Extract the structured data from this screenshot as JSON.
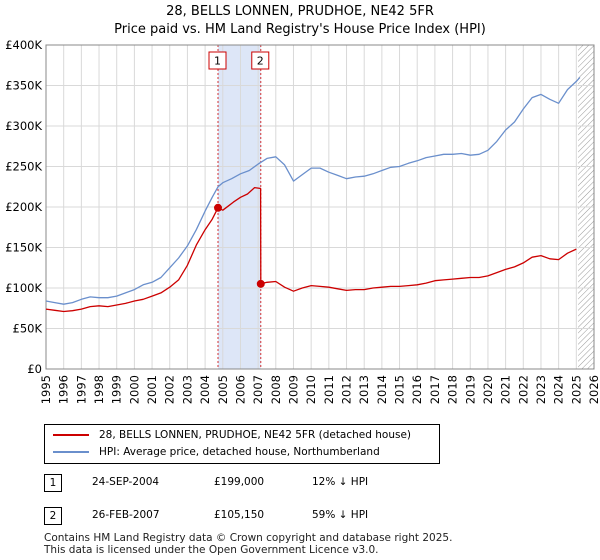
{
  "title": "28, BELLS LONNEN, PRUDHOE, NE42 5FR",
  "subtitle": "Price paid vs. HM Land Registry's House Price Index (HPI)",
  "colors": {
    "property": "#cc0000",
    "hpi": "#6a8fcc",
    "shade": "#dde6f7",
    "grid": "#d9d9d9"
  },
  "chart_data": {
    "type": "line",
    "title": "28, BELLS LONNEN, PRUDHOE, NE42 5FR — Price paid vs. HM Land Registry's House Price Index (HPI)",
    "xlim": [
      1995,
      2026
    ],
    "ylim": [
      0,
      400000
    ],
    "x_ticks": [
      "1995",
      "1996",
      "1997",
      "1998",
      "1999",
      "2000",
      "2001",
      "2002",
      "2003",
      "2004",
      "2005",
      "2006",
      "2007",
      "2008",
      "2009",
      "2010",
      "2011",
      "2012",
      "2013",
      "2014",
      "2015",
      "2016",
      "2017",
      "2018",
      "2019",
      "2020",
      "2021",
      "2022",
      "2023",
      "2024",
      "2025",
      "2026"
    ],
    "y_ticks": [
      {
        "value": 0,
        "label": "£0"
      },
      {
        "value": 50000,
        "label": "£50K"
      },
      {
        "value": 100000,
        "label": "£100K"
      },
      {
        "value": 150000,
        "label": "£150K"
      },
      {
        "value": 200000,
        "label": "£200K"
      },
      {
        "value": 250000,
        "label": "£250K"
      },
      {
        "value": 300000,
        "label": "£300K"
      },
      {
        "value": 350000,
        "label": "£350K"
      },
      {
        "value": 400000,
        "label": "£400K"
      }
    ],
    "shaded_range": [
      2004.73,
      2007.15
    ],
    "forecast_from": 2025.1,
    "series": [
      {
        "name": "28, BELLS LONNEN, PRUDHOE, NE42 5FR (detached house)",
        "color": "#cc0000",
        "points": [
          [
            1995.0,
            74000
          ],
          [
            1995.5,
            72500
          ],
          [
            1996.0,
            71000
          ],
          [
            1996.5,
            72000
          ],
          [
            1997.0,
            74000
          ],
          [
            1997.5,
            77000
          ],
          [
            1998.0,
            78000
          ],
          [
            1998.5,
            77000
          ],
          [
            1999.0,
            79000
          ],
          [
            1999.5,
            81000
          ],
          [
            2000.0,
            84000
          ],
          [
            2000.5,
            86000
          ],
          [
            2001.0,
            90000
          ],
          [
            2001.5,
            94000
          ],
          [
            2002.0,
            101000
          ],
          [
            2002.5,
            110000
          ],
          [
            2003.0,
            128000
          ],
          [
            2003.5,
            153000
          ],
          [
            2004.0,
            172000
          ],
          [
            2004.4,
            185000
          ],
          [
            2004.73,
            199000
          ],
          [
            2005.0,
            196000
          ],
          [
            2005.3,
            201000
          ],
          [
            2005.6,
            206000
          ],
          [
            2006.0,
            212000
          ],
          [
            2006.4,
            216000
          ],
          [
            2006.8,
            224000
          ],
          [
            2007.1,
            223000
          ],
          [
            2007.14,
            223000
          ],
          [
            2007.15,
            105150
          ],
          [
            2007.5,
            107000
          ],
          [
            2008.0,
            108000
          ],
          [
            2008.5,
            101000
          ],
          [
            2009.0,
            96000
          ],
          [
            2009.5,
            100000
          ],
          [
            2010.0,
            103000
          ],
          [
            2010.5,
            102000
          ],
          [
            2011.0,
            101000
          ],
          [
            2011.5,
            99000
          ],
          [
            2012.0,
            97000
          ],
          [
            2012.5,
            98000
          ],
          [
            2013.0,
            98000
          ],
          [
            2013.5,
            100000
          ],
          [
            2014.0,
            101000
          ],
          [
            2014.5,
            102000
          ],
          [
            2015.0,
            102000
          ],
          [
            2015.5,
            103000
          ],
          [
            2016.0,
            104000
          ],
          [
            2016.5,
            106000
          ],
          [
            2017.0,
            109000
          ],
          [
            2017.5,
            110000
          ],
          [
            2018.0,
            111000
          ],
          [
            2018.5,
            112000
          ],
          [
            2019.0,
            113000
          ],
          [
            2019.5,
            113000
          ],
          [
            2020.0,
            115000
          ],
          [
            2020.5,
            119000
          ],
          [
            2021.0,
            123000
          ],
          [
            2021.5,
            126000
          ],
          [
            2022.0,
            131000
          ],
          [
            2022.5,
            138000
          ],
          [
            2023.0,
            140000
          ],
          [
            2023.5,
            136000
          ],
          [
            2024.0,
            135000
          ],
          [
            2024.5,
            143000
          ],
          [
            2025.0,
            148000
          ]
        ]
      },
      {
        "name": "HPI: Average price, detached house, Northumberland",
        "color": "#6a8fcc",
        "points": [
          [
            1995.0,
            84000
          ],
          [
            1995.5,
            82000
          ],
          [
            1996.0,
            80000
          ],
          [
            1996.5,
            82000
          ],
          [
            1997.0,
            86000
          ],
          [
            1997.5,
            89000
          ],
          [
            1998.0,
            88000
          ],
          [
            1998.5,
            88000
          ],
          [
            1999.0,
            90000
          ],
          [
            1999.5,
            94000
          ],
          [
            2000.0,
            98000
          ],
          [
            2000.5,
            104000
          ],
          [
            2001.0,
            107000
          ],
          [
            2001.5,
            113000
          ],
          [
            2002.0,
            125000
          ],
          [
            2002.5,
            137000
          ],
          [
            2003.0,
            152000
          ],
          [
            2003.5,
            172000
          ],
          [
            2004.0,
            195000
          ],
          [
            2004.4,
            212000
          ],
          [
            2004.73,
            225000
          ],
          [
            2005.0,
            230000
          ],
          [
            2005.5,
            235000
          ],
          [
            2006.0,
            241000
          ],
          [
            2006.5,
            245000
          ],
          [
            2007.0,
            253000
          ],
          [
            2007.5,
            260000
          ],
          [
            2008.0,
            262000
          ],
          [
            2008.5,
            252000
          ],
          [
            2009.0,
            232000
          ],
          [
            2009.5,
            240000
          ],
          [
            2010.0,
            248000
          ],
          [
            2010.5,
            248000
          ],
          [
            2011.0,
            243000
          ],
          [
            2011.5,
            239000
          ],
          [
            2012.0,
            235000
          ],
          [
            2012.5,
            237000
          ],
          [
            2013.0,
            238000
          ],
          [
            2013.5,
            241000
          ],
          [
            2014.0,
            245000
          ],
          [
            2014.5,
            249000
          ],
          [
            2015.0,
            250000
          ],
          [
            2015.5,
            254000
          ],
          [
            2016.0,
            257000
          ],
          [
            2016.5,
            261000
          ],
          [
            2017.0,
            263000
          ],
          [
            2017.5,
            265000
          ],
          [
            2018.0,
            265000
          ],
          [
            2018.5,
            266000
          ],
          [
            2019.0,
            264000
          ],
          [
            2019.5,
            265000
          ],
          [
            2020.0,
            270000
          ],
          [
            2020.5,
            281000
          ],
          [
            2021.0,
            295000
          ],
          [
            2021.5,
            305000
          ],
          [
            2022.0,
            321000
          ],
          [
            2022.5,
            335000
          ],
          [
            2023.0,
            339000
          ],
          [
            2023.5,
            333000
          ],
          [
            2024.0,
            328000
          ],
          [
            2024.5,
            345000
          ],
          [
            2025.0,
            355000
          ],
          [
            2025.2,
            360000
          ]
        ]
      }
    ],
    "transactions_markers": [
      {
        "label": "1",
        "x": 2004.73,
        "y": 199000
      },
      {
        "label": "2",
        "x": 2007.15,
        "y": 105150
      }
    ]
  },
  "legend": {
    "property_label": "28, BELLS LONNEN, PRUDHOE, NE42 5FR (detached house)",
    "hpi_label": "HPI: Average price, detached house, Northumberland"
  },
  "transactions": [
    {
      "num": "1",
      "date": "24-SEP-2004",
      "price": "£199,000",
      "hpi": "12% ↓ HPI"
    },
    {
      "num": "2",
      "date": "26-FEB-2007",
      "price": "£105,150",
      "hpi": "59% ↓ HPI"
    }
  ],
  "footer": {
    "line1": "Contains HM Land Registry data © Crown copyright and database right 2025.",
    "line2": "This data is licensed under the Open Government Licence v3.0."
  }
}
